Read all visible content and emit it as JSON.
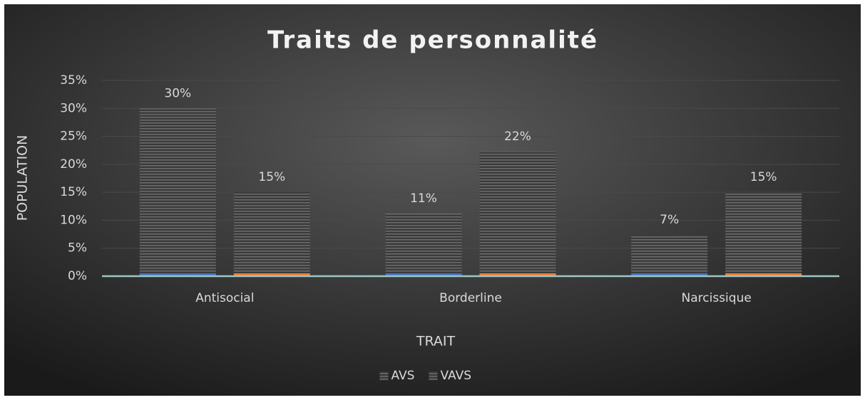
{
  "chart_data": {
    "type": "bar",
    "title": "Traits de personnalité",
    "x_label": "TRAIT",
    "y_label": "POPULATION",
    "categories": [
      "Antisocial",
      "Borderline",
      "Narcissique"
    ],
    "series": [
      {
        "name": "AVS",
        "color": "#4472c4",
        "values": [
          30,
          11.2,
          7.4
        ],
        "value_labels": [
          "30%",
          "11%",
          "7%"
        ]
      },
      {
        "name": "VAVS",
        "color": "#ed7d31",
        "values": [
          15,
          22.3,
          15
        ],
        "value_labels": [
          "15%",
          "22%",
          "15%"
        ]
      }
    ],
    "ylim": [
      0,
      35
    ],
    "yticks": [
      {
        "value": 0,
        "label": "0%"
      },
      {
        "value": 5,
        "label": "5%"
      },
      {
        "value": 10,
        "label": "10%"
      },
      {
        "value": 15,
        "label": "15%"
      },
      {
        "value": 20,
        "label": "20%"
      },
      {
        "value": 25,
        "label": "25%"
      },
      {
        "value": 30,
        "label": "30%"
      },
      {
        "value": 35,
        "label": "35%"
      }
    ],
    "grid": true,
    "legend": "bottom"
  }
}
